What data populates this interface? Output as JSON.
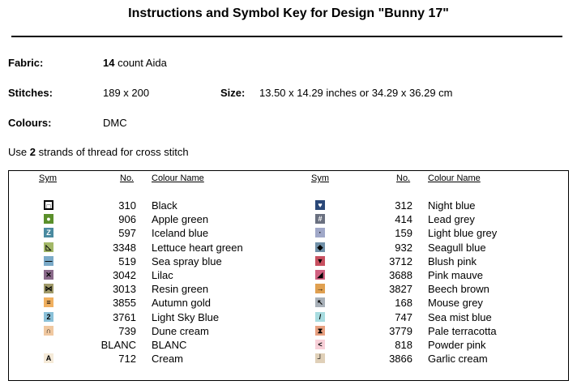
{
  "title": "Instructions and Symbol Key for Design \"Bunny 17\"",
  "fabric": {
    "label": "Fabric:",
    "count": "14",
    "text": "count Aida"
  },
  "stitches": {
    "label": "Stitches:",
    "value": "189 x 200"
  },
  "size": {
    "label": "Size:",
    "value": "13.50 x 14.29 inches or 34.29 x 36.29 cm"
  },
  "colours": {
    "label": "Colours:",
    "value": "DMC"
  },
  "strands": {
    "pre": "Use",
    "count": "2",
    "post": "strands of thread for cross stitch"
  },
  "headers": {
    "sym": "Sym",
    "no": "No.",
    "name": "Colour Name"
  },
  "left": [
    {
      "glyph": "□",
      "bg": "#ffffff",
      "fg": "#000",
      "border": "#000",
      "no": "310",
      "name": "Black"
    },
    {
      "glyph": "●",
      "bg": "#5a8f2a",
      "fg": "#fff",
      "no": "906",
      "name": "Apple green"
    },
    {
      "glyph": "Z",
      "bg": "#4a8aa0",
      "fg": "#fff",
      "no": "597",
      "name": "Iceland blue"
    },
    {
      "glyph": "◺",
      "bg": "#a3b868",
      "fg": "#000",
      "no": "3348",
      "name": "Lettuce heart green"
    },
    {
      "glyph": "—",
      "bg": "#7aaac8",
      "fg": "#000",
      "no": "519",
      "name": "Sea spray blue"
    },
    {
      "glyph": "✕",
      "bg": "#8a6a8a",
      "fg": "#000",
      "no": "3042",
      "name": "Lilac"
    },
    {
      "glyph": "⋈",
      "bg": "#a09a6a",
      "fg": "#000",
      "no": "3013",
      "name": "Resin green"
    },
    {
      "glyph": "≡",
      "bg": "#f0b060",
      "fg": "#000",
      "no": "3855",
      "name": "Autumn gold"
    },
    {
      "glyph": "2",
      "bg": "#8ac0d8",
      "fg": "#000",
      "no": "3761",
      "name": "Light Sky Blue"
    },
    {
      "glyph": "∩",
      "bg": "#f0c8a0",
      "fg": "#000",
      "no": "739",
      "name": "Dune cream"
    },
    {
      "glyph": "",
      "bg": "#ffffff",
      "fg": "#000",
      "no": "BLANC",
      "name": "BLANC"
    },
    {
      "glyph": "A",
      "bg": "#f5ead8",
      "fg": "#000",
      "no": "712",
      "name": "Cream"
    }
  ],
  "right": [
    {
      "glyph": "♥",
      "bg": "#2a4878",
      "fg": "#fff",
      "no": "312",
      "name": "Night blue"
    },
    {
      "glyph": "#",
      "bg": "#6a7080",
      "fg": "#fff",
      "no": "414",
      "name": "Lead grey"
    },
    {
      "glyph": "·",
      "bg": "#a0a8c8",
      "fg": "#000",
      "no": "159",
      "name": "Light blue grey"
    },
    {
      "glyph": "◆",
      "bg": "#7090a8",
      "fg": "#000",
      "no": "932",
      "name": "Seagull blue"
    },
    {
      "glyph": "▼",
      "bg": "#c85060",
      "fg": "#000",
      "no": "3712",
      "name": "Blush pink"
    },
    {
      "glyph": "◢",
      "bg": "#d06080",
      "fg": "#000",
      "no": "3688",
      "name": "Pink mauve"
    },
    {
      "glyph": "→",
      "bg": "#e0a050",
      "fg": "#000",
      "no": "3827",
      "name": "Beech brown"
    },
    {
      "glyph": "↖",
      "bg": "#a8b0b8",
      "fg": "#000",
      "no": "168",
      "name": "Mouse grey"
    },
    {
      "glyph": "/",
      "bg": "#a8dce0",
      "fg": "#000",
      "no": "747",
      "name": "Sea mist blue"
    },
    {
      "glyph": "⧗",
      "bg": "#e8a080",
      "fg": "#000",
      "no": "3779",
      "name": "Pale terracotta"
    },
    {
      "glyph": "<",
      "bg": "#f8d0d8",
      "fg": "#000",
      "no": "818",
      "name": "Powder pink"
    },
    {
      "glyph": "┘",
      "bg": "#e0d0b8",
      "fg": "#000",
      "no": "3866",
      "name": "Garlic cream"
    }
  ]
}
